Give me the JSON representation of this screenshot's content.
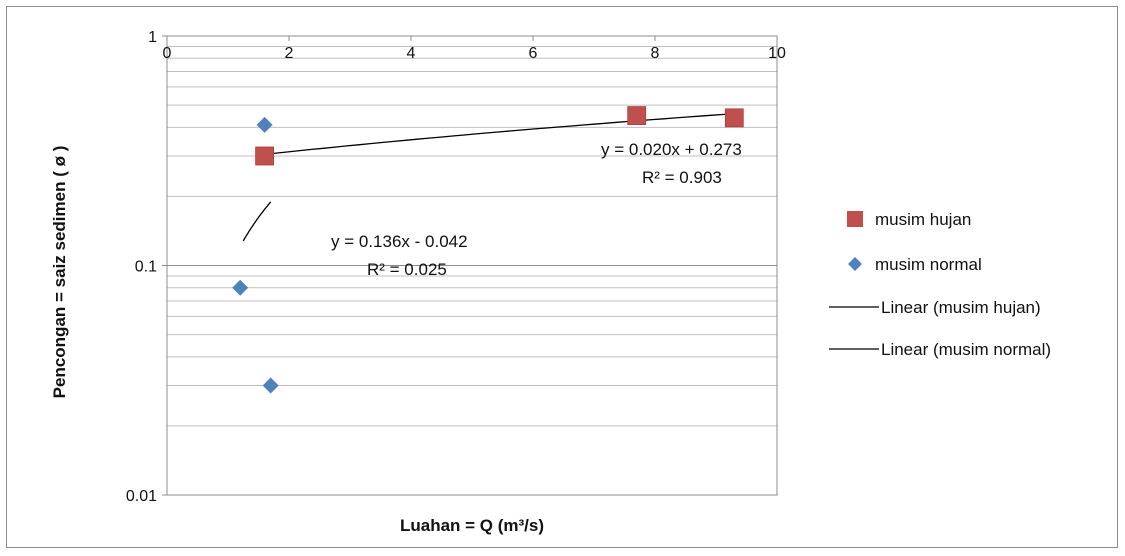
{
  "chart_data": {
    "type": "scatter",
    "xlabel": "Luahan = Q (m³/s)",
    "ylabel": "Pencongan = saiz sedimen ( ø )",
    "x_axis": {
      "min": 0,
      "max": 10,
      "major": 2,
      "ticks": [
        "0",
        "2",
        "4",
        "6",
        "8",
        "10"
      ],
      "position": "top"
    },
    "y_axis": {
      "scale": "log",
      "min": 0.01,
      "max": 1,
      "ticks": [
        "0.01",
        "0.1",
        "1"
      ]
    },
    "grid": true,
    "legend_position": "right",
    "series": [
      {
        "name": "musim hujan",
        "marker": "square",
        "color": "#c0504d",
        "points": [
          {
            "x": 1.6,
            "y": 0.3
          },
          {
            "x": 7.7,
            "y": 0.45
          },
          {
            "x": 9.3,
            "y": 0.44
          }
        ]
      },
      {
        "name": "musim normal",
        "marker": "diamond",
        "color": "#4f81bd",
        "points": [
          {
            "x": 1.6,
            "y": 0.41
          },
          {
            "x": 1.2,
            "y": 0.08
          },
          {
            "x": 1.7,
            "y": 0.03
          }
        ]
      }
    ],
    "trendlines": [
      {
        "name": "Linear (musim hujan)",
        "color": "#000000",
        "slope": 0.02,
        "intercept": 0.273,
        "x_range": [
          1.6,
          9.3
        ],
        "equation": "y = 0.020x + 0.273",
        "r2": "R² = 0.903"
      },
      {
        "name": "Linear (musim normal)",
        "color": "#000000",
        "slope": 0.136,
        "intercept": -0.042,
        "x_range": [
          1.25,
          1.7
        ],
        "equation": "y = 0.136x - 0.042",
        "r2": "R² = 0.025"
      }
    ]
  }
}
